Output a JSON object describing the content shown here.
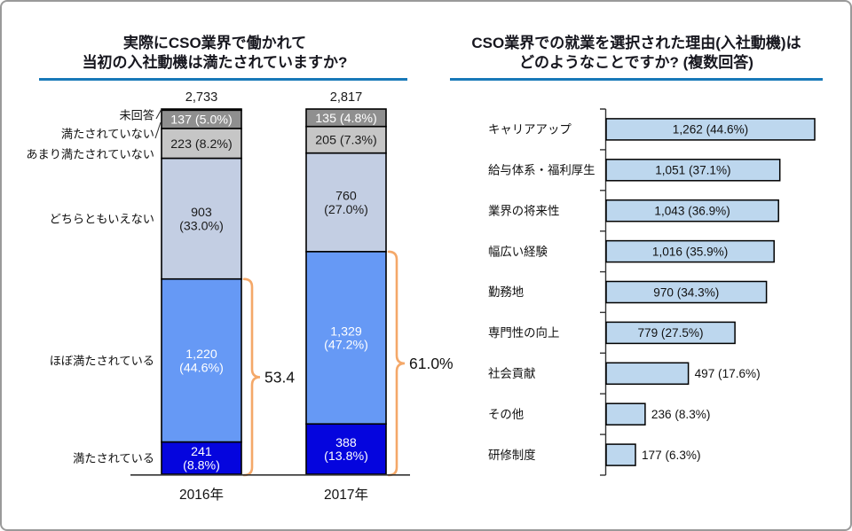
{
  "slide": {
    "background_color": "#FFFFFF",
    "frame_border_color": "#9A9A9A",
    "title_rule_color": "#1879B8"
  },
  "chart_data": [
    {
      "type": "stacked_bar",
      "title_lines": [
        "実際にCSO業界で働かれて",
        "当初の入社動機は満たされていますか?"
      ],
      "categories": [
        "2016年",
        "2017年"
      ],
      "totals": [
        2733,
        2817
      ],
      "totals_display": [
        "2,733",
        "2,817"
      ],
      "ylim_percent": [
        0,
        100
      ],
      "grid": false,
      "series": [
        {
          "name": "未回答",
          "values": [
            9,
            0
          ],
          "color": "#000000",
          "text_color": "#ffffff",
          "segment_labels": [
            [],
            []
          ]
        },
        {
          "name": "満たされていない",
          "values": [
            137,
            135
          ],
          "color": "#8f8f8f",
          "text_color": "#ffffff",
          "segment_labels": [
            [
              "137 (5.0%)"
            ],
            [
              "135 (4.8%)"
            ]
          ]
        },
        {
          "name": "あまり満たされていない",
          "values": [
            223,
            205
          ],
          "color": "#c6c6c6",
          "text_color": "#1a1a1a",
          "segment_labels": [
            [
              "223 (8.2%)"
            ],
            [
              "205 (7.3%)"
            ]
          ]
        },
        {
          "name": "どちらともいえない",
          "values": [
            903,
            760
          ],
          "color": "#c3cee3",
          "text_color": "#1a1a1a",
          "segment_labels": [
            [
              "903",
              "(33.0%)"
            ],
            [
              "760",
              "(27.0%)"
            ]
          ]
        },
        {
          "name": "ほぼ満たされている",
          "values": [
            1220,
            1329
          ],
          "color": "#6699f5",
          "text_color": "#ffffff",
          "segment_labels": [
            [
              "1,220",
              "(44.6%)"
            ],
            [
              "1,329",
              "(47.2%)"
            ]
          ]
        },
        {
          "name": "満たされている",
          "values": [
            241,
            388
          ],
          "color": "#0505de",
          "text_color": "#ffffff",
          "segment_labels": [
            [
              "241",
              "(8.8%)"
            ],
            [
              "388",
              "(13.8%)"
            ]
          ]
        }
      ],
      "braces": [
        {
          "label": "53.4",
          "covers_series": [
            "ほぼ満たされている",
            "満たされている"
          ],
          "color": "#f4a869"
        },
        {
          "label": "61.0%",
          "covers_series": [
            "ほぼ満たされている",
            "満たされている"
          ],
          "color": "#f4a869"
        }
      ]
    },
    {
      "type": "bar",
      "orientation": "horizontal",
      "title_lines": [
        "CSO業界での就業を選択された理由(入社動機)は",
        "どのようなことですか? (複数回答)"
      ],
      "categories": [
        "キャリアアップ",
        "給与体系・福利厚生",
        "業界の将来性",
        "幅広い経験",
        "勤務地",
        "専門性の向上",
        "社会貢献",
        "その他",
        "研修制度"
      ],
      "values": [
        1262,
        1051,
        1043,
        1016,
        970,
        779,
        497,
        236,
        177
      ],
      "value_labels": [
        "1,262 (44.6%)",
        "1,051 (37.1%)",
        "1,043 (36.9%)",
        "1,016 (35.9%)",
        "970 (34.3%)",
        "779 (27.5%)",
        "497 (17.6%)",
        "236 (8.3%)",
        "177 (6.3%)"
      ],
      "bar_color": "#bdd7ee",
      "bar_border_color": "#000000",
      "grid": false,
      "axis_numbers_visible": false
    }
  ]
}
